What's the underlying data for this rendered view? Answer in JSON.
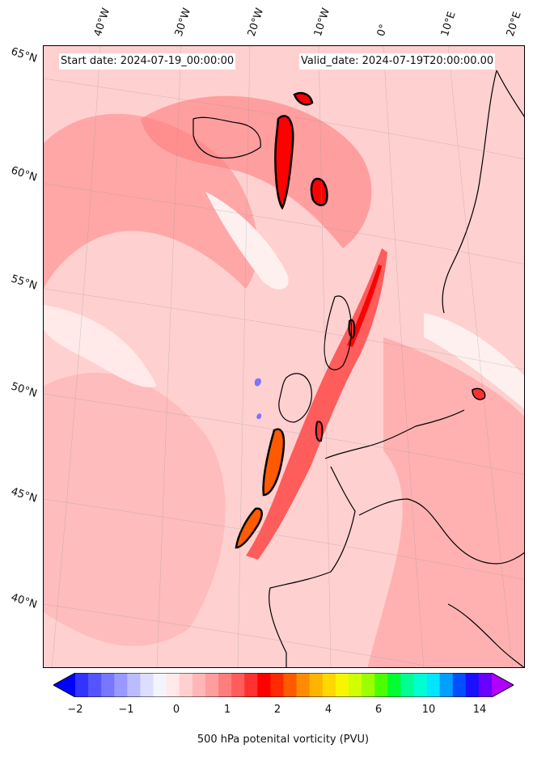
{
  "header": {
    "start_date": "Start date: 2024-07-19_00:00:00",
    "valid_date": "Valid_date: 2024-07-19T20:00:00.00"
  },
  "lat_labels": [
    "65°N",
    "60°N",
    "55°N",
    "50°N",
    "45°N",
    "40°N"
  ],
  "lon_labels": [
    "40°W",
    "30°W",
    "20°W",
    "10°W",
    "0°",
    "10°E",
    "20°E"
  ],
  "colorbar": {
    "title": "500 hPa potenital vorticity (PVU)",
    "ticks": [
      "−2",
      "−1",
      "0",
      "1",
      "2",
      "4",
      "6",
      "10",
      "14"
    ],
    "colors": [
      "#0000ff",
      "#3333ff",
      "#5555ff",
      "#7777ff",
      "#9999ff",
      "#bbbbff",
      "#ddddff",
      "#f4f4ff",
      "#ffe9e9",
      "#ffd0d0",
      "#ffb6b6",
      "#ff9c9c",
      "#ff7d7d",
      "#ff5c5c",
      "#ff3030",
      "#ff0000",
      "#ff2a00",
      "#ff5a00",
      "#ff8c00",
      "#ffb400",
      "#ffd800",
      "#f6f600",
      "#d0ff00",
      "#9cff00",
      "#4cff00",
      "#00ff30",
      "#00ff90",
      "#00ffd0",
      "#00e6ff",
      "#00a0ff",
      "#0050ff",
      "#1a10ff",
      "#6a00ff",
      "#b000ff"
    ]
  }
}
